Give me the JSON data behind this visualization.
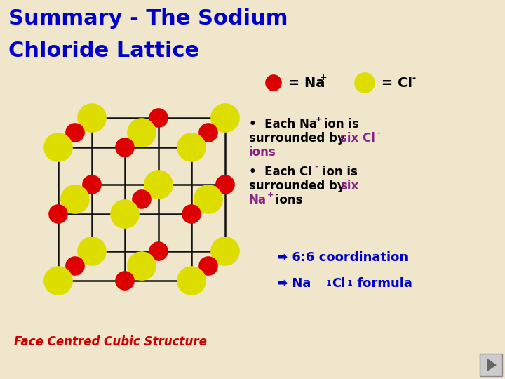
{
  "title_line1": "Summary - The Sodium",
  "title_line2": "Chloride Lattice",
  "title_color": "#0000cc",
  "bg_color": "#f0e6cc",
  "na_color": "#dd0000",
  "cl_color": "#dddd00",
  "arrow_color": "#0000cc",
  "coordination": "6:6 coordination",
  "face_centred": "Face Centred Cubic Structure",
  "face_centred_color": "#cc0000",
  "text_color": "#000000",
  "purple_color": "#882288",
  "lattice_line_color": "#111111",
  "title_fontsize": 22,
  "body_fontsize": 12,
  "legend_fontsize": 14
}
